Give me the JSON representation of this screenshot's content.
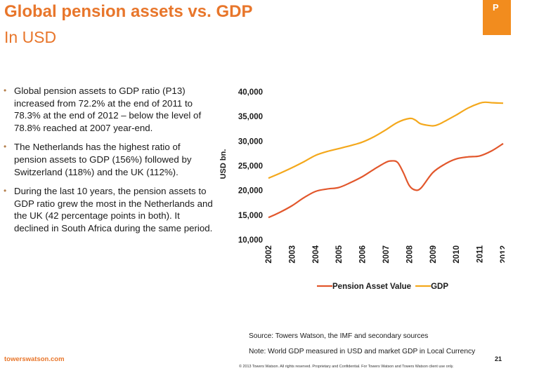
{
  "slide": {
    "title": "Global pension assets vs. GDP",
    "subtitle": "In USD",
    "corner_tab_text": "P",
    "page_number": "21",
    "brand": "towerswatson.com",
    "copyright": "© 2013 Towers Watson. All rights reserved. Proprietary and Confidential. For Towers Watson and Towers Watson client use only.",
    "source": "Source: Towers Watson, the IMF and secondary sources",
    "note": "Note: World GDP measured in USD and market GDP in Local Currency"
  },
  "bullets": [
    "Global pension assets to GDP ratio (P13) increased from 72.2% at the end of 2011 to 78.3% at the end of 2012 – below the level of 78.8% reached at 2007 year-end.",
    "The Netherlands has the highest ratio of pension assets to GDP (156%) followed by Switzerland (118%) and the UK (112%).",
    "During the last 10 years, the pension assets to GDP ratio grew the most in the Netherlands and the UK (42 percentage points in both). It declined in South Africa during the same period."
  ],
  "colors": {
    "accent": "#e8762b",
    "tab": "#f28c1e",
    "pension": "#e2572c",
    "gdp": "#f4a81c"
  },
  "chart_data": {
    "type": "line",
    "ylabel": "USD bn.",
    "xlabel": "",
    "ylim": [
      10000,
      40000
    ],
    "xlim": [
      2002,
      2012
    ],
    "x_ticks": [
      "2002",
      "2003",
      "2004",
      "2005",
      "2006",
      "2007",
      "2008",
      "2009",
      "2010",
      "2011",
      "2012"
    ],
    "y_ticks": [
      "40,000",
      "35,000",
      "30,000",
      "25,000",
      "20,000",
      "15,000",
      "10,000"
    ],
    "y_tick_values": [
      40000,
      35000,
      30000,
      25000,
      20000,
      15000,
      10000
    ],
    "legend_position": "bottom",
    "grid": false,
    "series": [
      {
        "name": "Pension Asset Value",
        "color": "#e2572c",
        "x": [
          2002,
          2002.5,
          2003,
          2003.5,
          2004,
          2004.5,
          2005,
          2005.5,
          2006,
          2006.5,
          2007,
          2007.25,
          2007.5,
          2007.75,
          2008,
          2008.25,
          2008.5,
          2009,
          2009.5,
          2010,
          2010.5,
          2011,
          2011.5,
          2012
        ],
        "y": [
          14500,
          15600,
          16900,
          18500,
          19800,
          20300,
          20600,
          21600,
          22800,
          24300,
          25700,
          26000,
          25700,
          23600,
          21000,
          20100,
          20500,
          23600,
          25300,
          26400,
          26800,
          27000,
          28000,
          29500
        ]
      },
      {
        "name": "GDP",
        "color": "#f4a81c",
        "x": [
          2002,
          2002.5,
          2003,
          2003.5,
          2004,
          2004.5,
          2005,
          2005.5,
          2006,
          2006.5,
          2007,
          2007.5,
          2008,
          2008.25,
          2008.5,
          2009,
          2009.25,
          2009.5,
          2010,
          2010.5,
          2011,
          2011.25,
          2011.5,
          2012
        ],
        "y": [
          22500,
          23500,
          24600,
          25800,
          27100,
          27900,
          28500,
          29100,
          29800,
          30900,
          32300,
          33800,
          34600,
          34300,
          33500,
          33100,
          33400,
          34000,
          35300,
          36700,
          37700,
          37900,
          37800,
          37700
        ]
      }
    ]
  }
}
